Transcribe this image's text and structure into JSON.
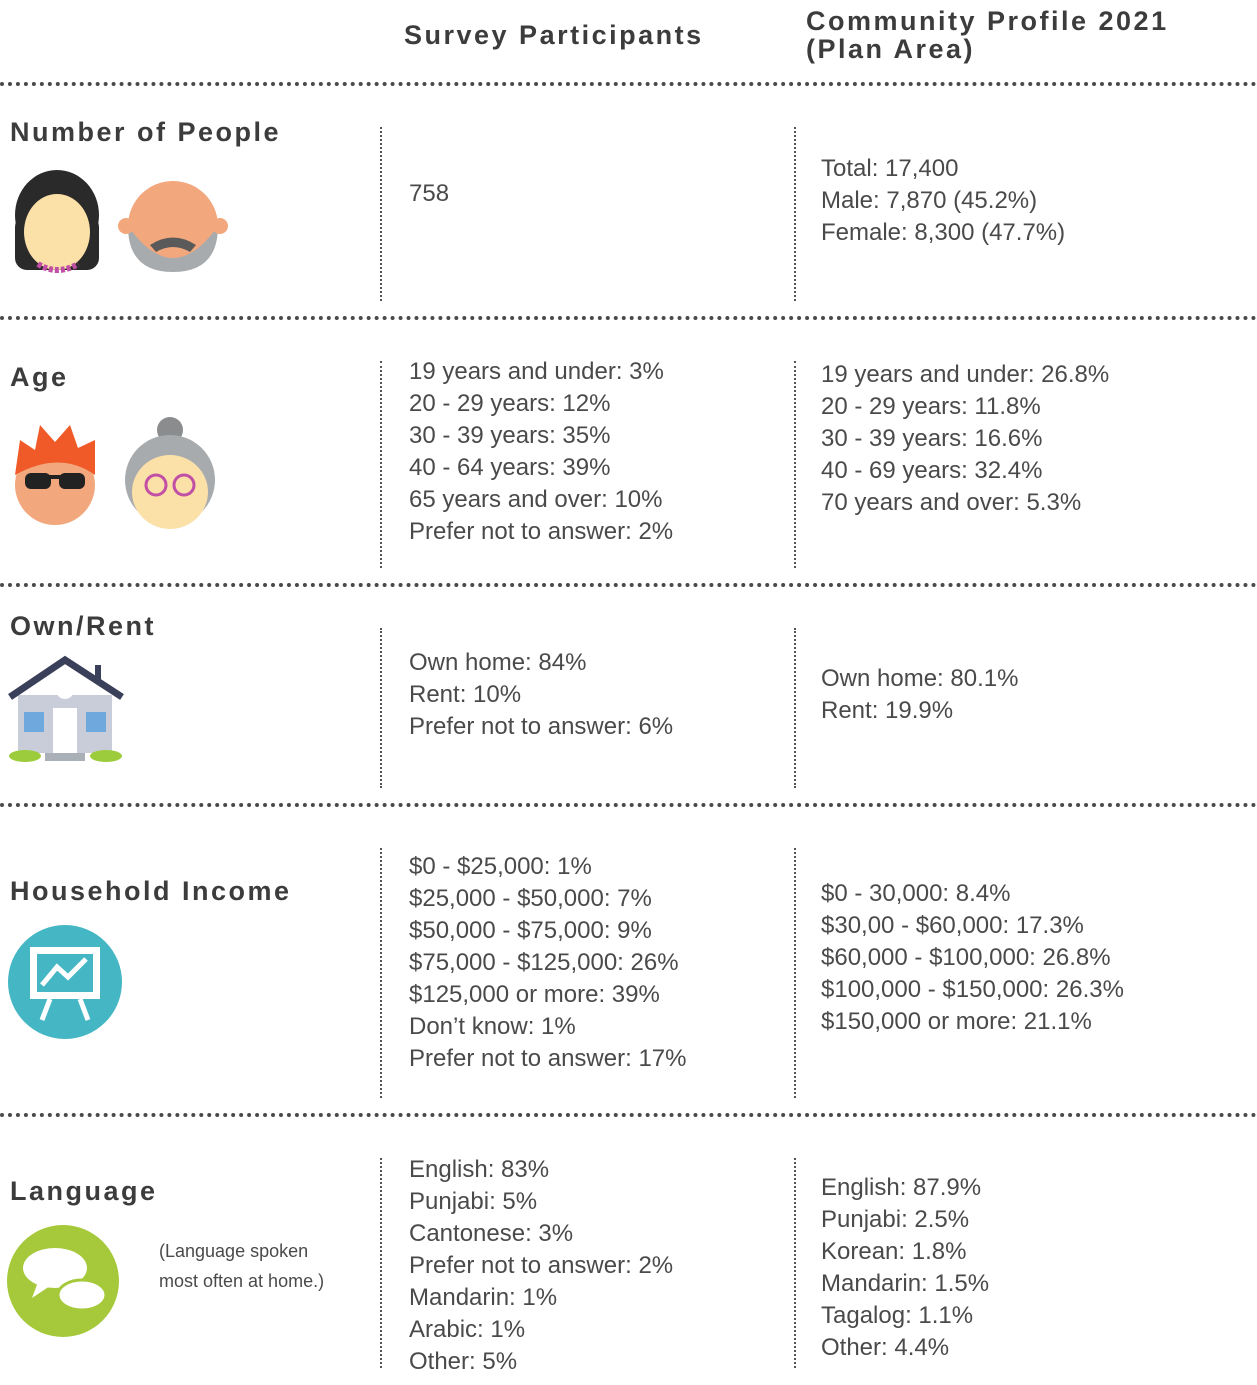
{
  "header": {
    "columns": [
      "Survey Participants",
      "Community Profile 2021",
      "(Plan Area)"
    ]
  },
  "rows": [
    {
      "title": "Number of People",
      "survey": [
        "758"
      ],
      "profile": [
        "Total: 17,400",
        "Male: 7,870 (45.2%)",
        "Female: 8,300 (47.7%)"
      ]
    },
    {
      "title": "Age",
      "survey": [
        "19 years and under: 3%",
        "20 - 29 years: 12%",
        "30 - 39 years: 35%",
        "40 - 64 years: 39%",
        "65 years and over: 10%",
        "Prefer not to answer: 2%"
      ],
      "profile": [
        "19 years and under: 26.8%",
        "20 - 29 years: 11.8%",
        "30 - 39 years: 16.6%",
        "40 - 69 years: 32.4%",
        "70 years and over: 5.3%"
      ]
    },
    {
      "title": "Own/Rent",
      "survey": [
        "Own home: 84%",
        "Rent: 10%",
        "Prefer not to answer: 6%"
      ],
      "profile": [
        "Own home: 80.1%",
        "Rent: 19.9%"
      ]
    },
    {
      "title": "Household Income",
      "survey": [
        "$0 - $25,000: 1%",
        "$25,000 - $50,000: 7%",
        "$50,000 - $75,000: 9%",
        "$75,000 - $125,000: 26%",
        "$125,000 or more: 39%",
        "Don’t know: 1%",
        "Prefer not to answer: 17%"
      ],
      "profile": [
        "$0 - 30,000: 8.4%",
        "$30,00 - $60,000: 17.3%",
        "$60,000 - $100,000: 26.8%",
        "$100,000 - $150,000: 26.3%",
        "$150,000 or more: 21.1%"
      ]
    },
    {
      "title": "Language",
      "note": [
        "(Language spoken",
        "most often at home.)"
      ],
      "survey": [
        "English: 83%",
        "Punjabi: 5%",
        "Cantonese: 3%",
        "Prefer not to answer: 2%",
        "Mandarin: 1%",
        "Arabic: 1%",
        "Other: 5%"
      ],
      "profile": [
        "English: 87.9%",
        "Punjabi: 2.5%",
        "Korean: 1.8%",
        "Mandarin: 1.5%",
        "Tagalog: 1.1%",
        "Other: 4.4%"
      ]
    }
  ]
}
